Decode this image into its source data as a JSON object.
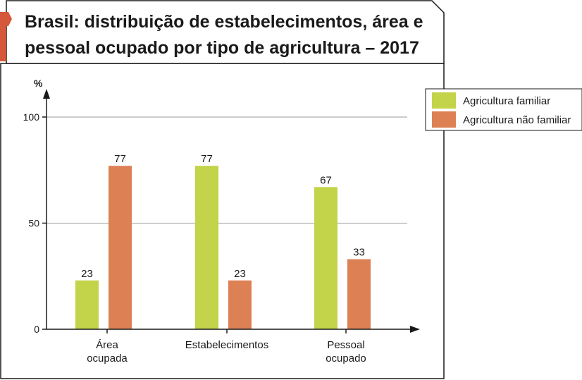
{
  "chart_data": {
    "type": "bar",
    "title_lines": [
      "Brasil: distribuição de estabelecimentos, área e",
      "pessoal ocupado por tipo de agricultura – 2017"
    ],
    "ylabel": "%",
    "ylim": [
      0,
      100
    ],
    "yticks": [
      0,
      50,
      100
    ],
    "grid": true,
    "legend_position": "top-right",
    "categories": [
      [
        "Área",
        "ocupada"
      ],
      [
        "Estabelecimentos"
      ],
      [
        "Pessoal",
        "ocupado"
      ]
    ],
    "series": [
      {
        "name": "Agricultura familiar",
        "color": "#c3d34a",
        "values": [
          23,
          77,
          67
        ]
      },
      {
        "name": "Agricultura não familiar",
        "color": "#dd8154",
        "values": [
          77,
          23,
          33
        ]
      }
    ]
  },
  "colors": {
    "accent": "#d5583a",
    "border": "#1a1a1a",
    "grid": "#9a9a9a"
  }
}
